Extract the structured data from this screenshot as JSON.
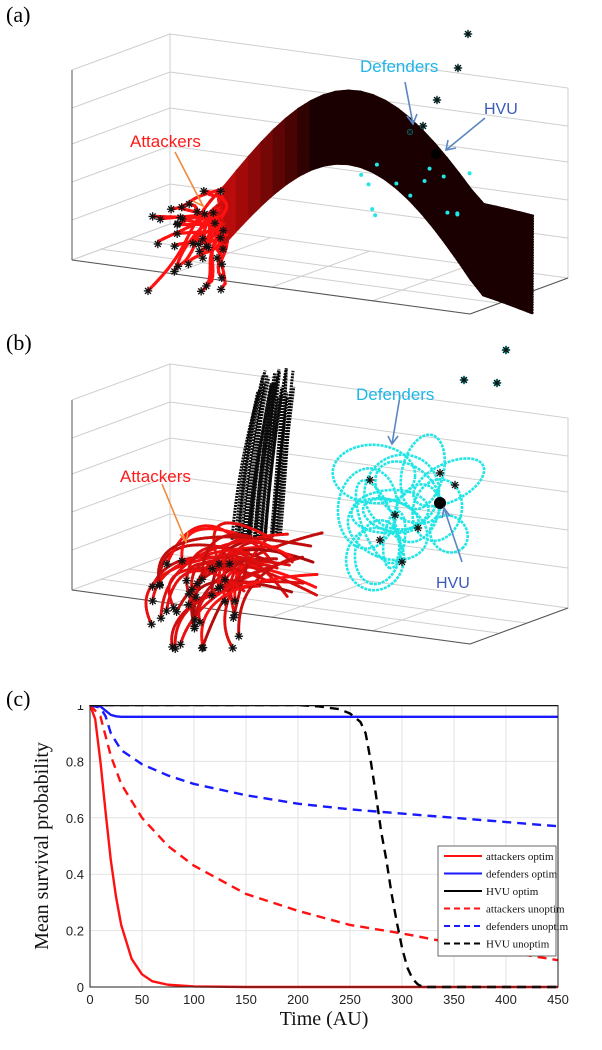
{
  "panels": {
    "a": {
      "label": "(a)",
      "annotations": {
        "attackers": "Attackers",
        "defenders": "Defenders",
        "hvu": "HVU"
      }
    },
    "b": {
      "label": "(b)",
      "annotations": {
        "attackers": "Attackers",
        "defenders": "Defenders",
        "hvu": "HVU"
      }
    },
    "c": {
      "label": "(c)"
    }
  },
  "colors": {
    "attackers": "#ff1111",
    "defenders": "#1a1aff",
    "defenders_3d": "#22e5e5",
    "hvu": "#000000",
    "annotation_attackers": "#ff1a1a",
    "annotation_defenders": "#1fb6e8",
    "annotation_hvu": "#3a5bb8",
    "arrow_attackers": "#f08a3c",
    "arrow_blue": "#5b86c4"
  },
  "chart_data": [
    {
      "type": "3d-trajectory-scatter",
      "panel": "a",
      "annotations": [
        "Attackers",
        "Defenders",
        "HVU"
      ],
      "grid": true
    },
    {
      "type": "3d-trajectory-scatter",
      "panel": "b",
      "annotations": [
        "Attackers",
        "Defenders",
        "HVU"
      ],
      "grid": true
    },
    {
      "type": "line",
      "panel": "c",
      "xlabel": "Time (AU)",
      "ylabel": "Mean survival probability",
      "xlim": [
        0,
        450
      ],
      "ylim": [
        0,
        1
      ],
      "xticks": [
        0,
        50,
        100,
        150,
        200,
        250,
        300,
        350,
        400,
        450
      ],
      "yticks": [
        0,
        0.2,
        0.4,
        0.6,
        0.8,
        1
      ],
      "grid": true,
      "legend_position": "right",
      "series": [
        {
          "name": "attackers optim",
          "color": "#ff1111",
          "dash": "solid",
          "x": [
            0,
            5,
            10,
            15,
            20,
            25,
            30,
            40,
            50,
            60,
            75,
            100,
            150,
            200,
            450
          ],
          "y": [
            1,
            0.95,
            0.8,
            0.62,
            0.45,
            0.32,
            0.22,
            0.1,
            0.045,
            0.02,
            0.008,
            0.002,
            0,
            0,
            0
          ]
        },
        {
          "name": "defenders optim",
          "color": "#1a1aff",
          "dash": "solid",
          "x": [
            0,
            10,
            15,
            20,
            25,
            30,
            40,
            60,
            450
          ],
          "y": [
            1,
            0.995,
            0.98,
            0.965,
            0.96,
            0.958,
            0.958,
            0.958,
            0.958
          ]
        },
        {
          "name": "HVU optim",
          "color": "#000000",
          "dash": "solid",
          "x": [
            0,
            450
          ],
          "y": [
            1,
            1
          ]
        },
        {
          "name": "attackers unoptim",
          "color": "#ff1111",
          "dash": "dashed",
          "x": [
            0,
            10,
            20,
            30,
            50,
            75,
            100,
            150,
            200,
            250,
            300,
            350,
            400,
            450
          ],
          "y": [
            1,
            0.96,
            0.82,
            0.72,
            0.6,
            0.5,
            0.43,
            0.33,
            0.27,
            0.22,
            0.19,
            0.155,
            0.125,
            0.095
          ]
        },
        {
          "name": "defenders unoptim",
          "color": "#1a1aff",
          "dash": "dashed",
          "x": [
            0,
            10,
            15,
            20,
            30,
            50,
            75,
            100,
            150,
            200,
            250,
            300,
            350,
            400,
            450
          ],
          "y": [
            1,
            0.99,
            0.96,
            0.9,
            0.84,
            0.79,
            0.75,
            0.72,
            0.68,
            0.65,
            0.63,
            0.615,
            0.6,
            0.585,
            0.57
          ]
        },
        {
          "name": "HVU unoptim",
          "color": "#000000",
          "dash": "dashed",
          "x": [
            0,
            200,
            220,
            240,
            250,
            260,
            265,
            270,
            275,
            280,
            285,
            290,
            295,
            300,
            305,
            310,
            315,
            320,
            450
          ],
          "y": [
            1,
            1,
            0.995,
            0.985,
            0.97,
            0.94,
            0.9,
            0.8,
            0.68,
            0.55,
            0.45,
            0.33,
            0.23,
            0.14,
            0.07,
            0.03,
            0.01,
            0,
            0
          ]
        }
      ]
    }
  ]
}
